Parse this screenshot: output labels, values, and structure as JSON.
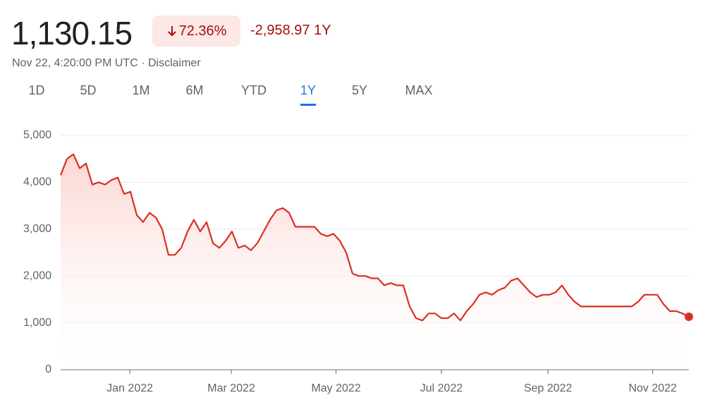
{
  "header": {
    "price": "1,130.15",
    "change_percent": "72.36%",
    "change_value": "-2,958.97",
    "change_period": "1Y",
    "timestamp": "Nov 22, 4:20:00 PM UTC",
    "disclaimer": "Disclaimer",
    "tabs": [
      {
        "label": "1D",
        "selected": false
      },
      {
        "label": "5D",
        "selected": false
      },
      {
        "label": "1M",
        "selected": false
      },
      {
        "label": "6M",
        "selected": false
      },
      {
        "label": "YTD",
        "selected": false
      },
      {
        "label": "1Y",
        "selected": true
      },
      {
        "label": "5Y",
        "selected": false
      },
      {
        "label": "MAX",
        "selected": false
      }
    ]
  },
  "chart_data": {
    "type": "line",
    "color": "#d93025",
    "area": true,
    "grid": true,
    "values": [
      4150,
      4500,
      4600,
      4300,
      4400,
      3950,
      4000,
      3950,
      4050,
      4100,
      3750,
      3800,
      3300,
      3150,
      3350,
      3250,
      3000,
      2450,
      2450,
      2600,
      2950,
      3200,
      2950,
      3150,
      2700,
      2600,
      2750,
      2950,
      2600,
      2650,
      2550,
      2700,
      2950,
      3200,
      3400,
      3450,
      3350,
      3050,
      3050,
      3050,
      3050,
      2900,
      2850,
      2900,
      2750,
      2500,
      2050,
      2000,
      2000,
      1950,
      1950,
      1800,
      1850,
      1800,
      1800,
      1350,
      1100,
      1050,
      1200,
      1200,
      1100,
      1100,
      1200,
      1050,
      1250,
      1400,
      1600,
      1650,
      1600,
      1700,
      1750,
      1900,
      1950,
      1800,
      1650,
      1550,
      1600,
      1600,
      1650,
      1800,
      1600,
      1450,
      1350,
      1350,
      1350,
      1350,
      1350,
      1350,
      1350,
      1350,
      1350,
      1450,
      1600,
      1600,
      1600,
      1400,
      1250,
      1250,
      1200,
      1130.15
    ],
    "xlim": [
      0,
      99
    ],
    "xticks": [
      {
        "value": 10.9,
        "label": "Jan 2022"
      },
      {
        "value": 26.9,
        "label": "Mar 2022"
      },
      {
        "value": 43.4,
        "label": "May 2022"
      },
      {
        "value": 60,
        "label": "Jul 2022"
      },
      {
        "value": 76.8,
        "label": "Sep 2022"
      },
      {
        "value": 93.3,
        "label": "Nov 2022"
      }
    ],
    "ylim": [
      0,
      5000
    ],
    "yticks": [
      0,
      {
        "value": 1000,
        "label": "1,000"
      },
      {
        "value": 2000,
        "label": "2,000"
      },
      {
        "value": 3000,
        "label": "3,000"
      },
      {
        "value": 4000,
        "label": "4,000"
      },
      {
        "value": 5000,
        "label": "5,000"
      }
    ]
  }
}
